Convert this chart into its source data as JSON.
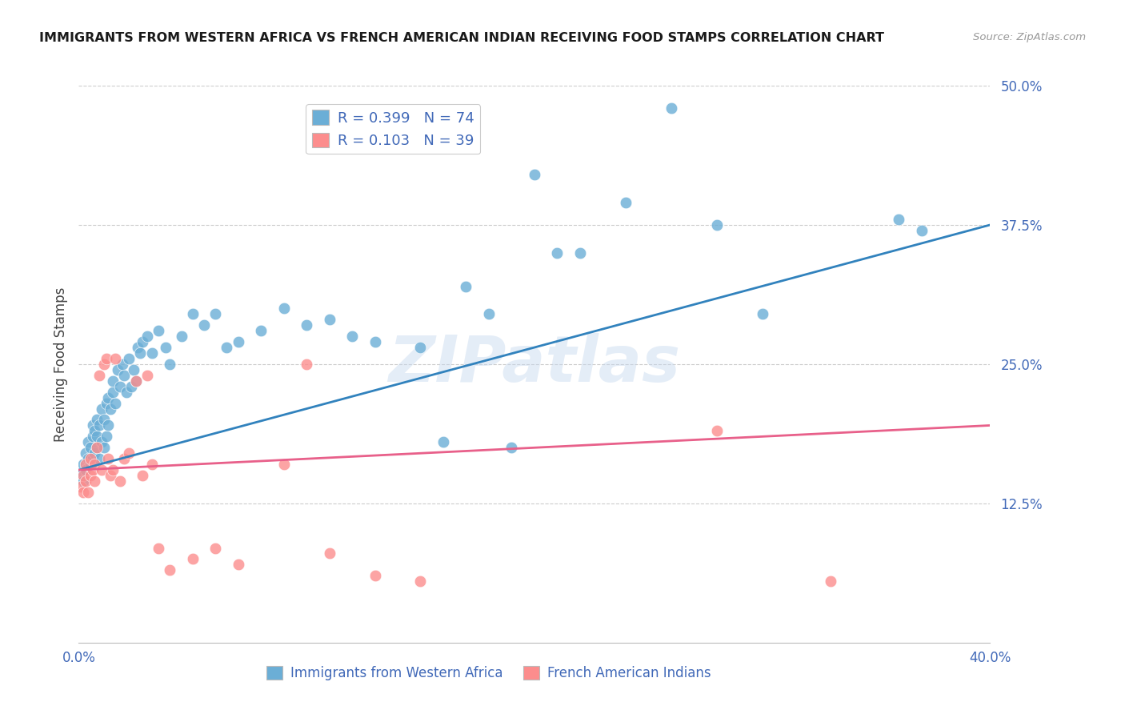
{
  "title": "IMMIGRANTS FROM WESTERN AFRICA VS FRENCH AMERICAN INDIAN RECEIVING FOOD STAMPS CORRELATION CHART",
  "source": "Source: ZipAtlas.com",
  "xlabel_blue": "Immigrants from Western Africa",
  "xlabel_pink": "French American Indians",
  "ylabel": "Receiving Food Stamps",
  "xlim": [
    0.0,
    0.4
  ],
  "ylim": [
    0.0,
    0.5
  ],
  "xticks": [
    0.0,
    0.05,
    0.1,
    0.15,
    0.2,
    0.25,
    0.3,
    0.35,
    0.4
  ],
  "yticks": [
    0.0,
    0.125,
    0.25,
    0.375,
    0.5
  ],
  "ytick_labels": [
    "",
    "12.5%",
    "25.0%",
    "37.5%",
    "50.0%"
  ],
  "xtick_labels": [
    "0.0%",
    "",
    "",
    "",
    "",
    "",
    "",
    "",
    "40.0%"
  ],
  "blue_R": 0.399,
  "blue_N": 74,
  "pink_R": 0.103,
  "pink_N": 39,
  "blue_color": "#6baed6",
  "pink_color": "#fc8d8d",
  "blue_line_color": "#3182bd",
  "pink_line_color": "#e8608a",
  "axis_label_color": "#4169b8",
  "watermark": "ZIPatlas",
  "blue_scatter_x": [
    0.001,
    0.002,
    0.002,
    0.003,
    0.003,
    0.004,
    0.004,
    0.005,
    0.005,
    0.006,
    0.006,
    0.006,
    0.007,
    0.007,
    0.008,
    0.008,
    0.008,
    0.009,
    0.009,
    0.01,
    0.01,
    0.011,
    0.011,
    0.012,
    0.012,
    0.013,
    0.013,
    0.014,
    0.015,
    0.015,
    0.016,
    0.017,
    0.018,
    0.019,
    0.02,
    0.021,
    0.022,
    0.023,
    0.024,
    0.025,
    0.026,
    0.027,
    0.028,
    0.03,
    0.032,
    0.035,
    0.038,
    0.04,
    0.045,
    0.05,
    0.055,
    0.06,
    0.065,
    0.07,
    0.08,
    0.09,
    0.1,
    0.11,
    0.12,
    0.13,
    0.15,
    0.16,
    0.17,
    0.18,
    0.19,
    0.2,
    0.21,
    0.22,
    0.24,
    0.26,
    0.28,
    0.3,
    0.36,
    0.37
  ],
  "blue_scatter_y": [
    0.15,
    0.145,
    0.16,
    0.155,
    0.17,
    0.165,
    0.18,
    0.16,
    0.175,
    0.165,
    0.185,
    0.195,
    0.17,
    0.19,
    0.175,
    0.185,
    0.2,
    0.165,
    0.195,
    0.18,
    0.21,
    0.175,
    0.2,
    0.185,
    0.215,
    0.195,
    0.22,
    0.21,
    0.225,
    0.235,
    0.215,
    0.245,
    0.23,
    0.25,
    0.24,
    0.225,
    0.255,
    0.23,
    0.245,
    0.235,
    0.265,
    0.26,
    0.27,
    0.275,
    0.26,
    0.28,
    0.265,
    0.25,
    0.275,
    0.295,
    0.285,
    0.295,
    0.265,
    0.27,
    0.28,
    0.3,
    0.285,
    0.29,
    0.275,
    0.27,
    0.265,
    0.18,
    0.32,
    0.295,
    0.175,
    0.42,
    0.35,
    0.35,
    0.395,
    0.48,
    0.375,
    0.295,
    0.38,
    0.37
  ],
  "pink_scatter_x": [
    0.001,
    0.002,
    0.002,
    0.003,
    0.003,
    0.004,
    0.005,
    0.005,
    0.006,
    0.007,
    0.007,
    0.008,
    0.009,
    0.01,
    0.011,
    0.012,
    0.013,
    0.014,
    0.015,
    0.016,
    0.018,
    0.02,
    0.022,
    0.025,
    0.028,
    0.03,
    0.032,
    0.035,
    0.04,
    0.05,
    0.06,
    0.07,
    0.09,
    0.1,
    0.11,
    0.13,
    0.15,
    0.28,
    0.33
  ],
  "pink_scatter_y": [
    0.14,
    0.15,
    0.135,
    0.145,
    0.16,
    0.135,
    0.165,
    0.15,
    0.155,
    0.145,
    0.16,
    0.175,
    0.24,
    0.155,
    0.25,
    0.255,
    0.165,
    0.15,
    0.155,
    0.255,
    0.145,
    0.165,
    0.17,
    0.235,
    0.15,
    0.24,
    0.16,
    0.085,
    0.065,
    0.075,
    0.085,
    0.07,
    0.16,
    0.25,
    0.08,
    0.06,
    0.055,
    0.19,
    0.055
  ],
  "blue_line_x0": 0.0,
  "blue_line_y0": 0.155,
  "blue_line_x1": 0.4,
  "blue_line_y1": 0.375,
  "pink_line_x0": 0.0,
  "pink_line_y0": 0.155,
  "pink_line_x1": 0.4,
  "pink_line_y1": 0.195
}
